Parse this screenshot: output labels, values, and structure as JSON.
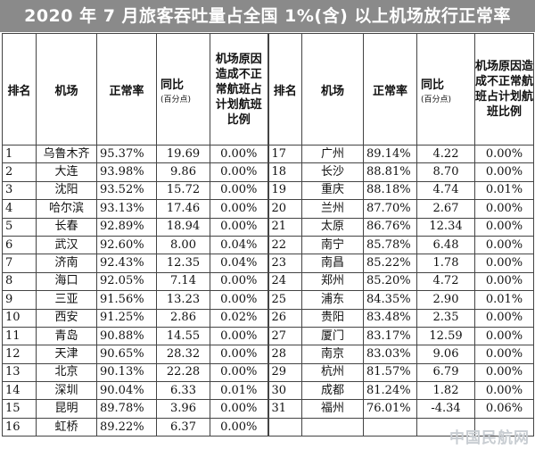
{
  "title": "2020 年 7 月旅客吞吐量占全国 1%(含) 以上机场放行正常率",
  "headers": {
    "rank": "排名",
    "airport": "机场",
    "rate": "正常率",
    "yoy": "同比",
    "yoy_unit": "(百分点)",
    "ratio": "机场原因造成不正常航班占计划航班比例"
  },
  "left_rows": [
    {
      "rank": "1",
      "airport": "乌鲁木齐",
      "rate": "95.37%",
      "yoy": "19.69",
      "ratio": "0.00%"
    },
    {
      "rank": "2",
      "airport": "大连",
      "rate": "93.98%",
      "yoy": "9.86",
      "ratio": "0.00%"
    },
    {
      "rank": "3",
      "airport": "沈阳",
      "rate": "93.52%",
      "yoy": "15.72",
      "ratio": "0.00%"
    },
    {
      "rank": "4",
      "airport": "哈尔滨",
      "rate": "93.13%",
      "yoy": "17.46",
      "ratio": "0.00%"
    },
    {
      "rank": "5",
      "airport": "长春",
      "rate": "92.89%",
      "yoy": "18.94",
      "ratio": "0.00%"
    },
    {
      "rank": "6",
      "airport": "武汉",
      "rate": "92.60%",
      "yoy": "8.00",
      "ratio": "0.04%"
    },
    {
      "rank": "7",
      "airport": "济南",
      "rate": "92.43%",
      "yoy": "12.35",
      "ratio": "0.04%"
    },
    {
      "rank": "8",
      "airport": "海口",
      "rate": "92.05%",
      "yoy": "7.14",
      "ratio": "0.00%"
    },
    {
      "rank": "9",
      "airport": "三亚",
      "rate": "91.56%",
      "yoy": "13.23",
      "ratio": "0.00%"
    },
    {
      "rank": "10",
      "airport": "西安",
      "rate": "91.25%",
      "yoy": "2.86",
      "ratio": "0.02%"
    },
    {
      "rank": "11",
      "airport": "青岛",
      "rate": "90.88%",
      "yoy": "14.55",
      "ratio": "0.00%"
    },
    {
      "rank": "12",
      "airport": "天津",
      "rate": "90.65%",
      "yoy": "28.32",
      "ratio": "0.00%"
    },
    {
      "rank": "13",
      "airport": "北京",
      "rate": "90.13%",
      "yoy": "22.28",
      "ratio": "0.00%"
    },
    {
      "rank": "14",
      "airport": "深圳",
      "rate": "90.04%",
      "yoy": "6.33",
      "ratio": "0.01%"
    },
    {
      "rank": "15",
      "airport": "昆明",
      "rate": "89.78%",
      "yoy": "3.96",
      "ratio": "0.00%"
    },
    {
      "rank": "16",
      "airport": "虹桥",
      "rate": "89.22%",
      "yoy": "6.37",
      "ratio": "0.00%"
    }
  ],
  "right_rows": [
    {
      "rank": "17",
      "airport": "广州",
      "rate": "89.14%",
      "yoy": "4.22",
      "ratio": "0.00%"
    },
    {
      "rank": "18",
      "airport": "长沙",
      "rate": "88.81%",
      "yoy": "8.70",
      "ratio": "0.00%"
    },
    {
      "rank": "19",
      "airport": "重庆",
      "rate": "88.18%",
      "yoy": "4.74",
      "ratio": "0.01%"
    },
    {
      "rank": "20",
      "airport": "兰州",
      "rate": "87.70%",
      "yoy": "2.67",
      "ratio": "0.00%"
    },
    {
      "rank": "21",
      "airport": "太原",
      "rate": "86.76%",
      "yoy": "12.34",
      "ratio": "0.00%"
    },
    {
      "rank": "22",
      "airport": "南宁",
      "rate": "85.78%",
      "yoy": "6.48",
      "ratio": "0.00%"
    },
    {
      "rank": "23",
      "airport": "南昌",
      "rate": "85.22%",
      "yoy": "1.78",
      "ratio": "0.00%"
    },
    {
      "rank": "24",
      "airport": "郑州",
      "rate": "85.20%",
      "yoy": "4.72",
      "ratio": "0.00%"
    },
    {
      "rank": "25",
      "airport": "浦东",
      "rate": "84.35%",
      "yoy": "2.90",
      "ratio": "0.01%"
    },
    {
      "rank": "26",
      "airport": "贵阳",
      "rate": "83.48%",
      "yoy": "2.35",
      "ratio": "0.00%"
    },
    {
      "rank": "27",
      "airport": "厦门",
      "rate": "83.17%",
      "yoy": "12.59",
      "ratio": "0.00%"
    },
    {
      "rank": "28",
      "airport": "南京",
      "rate": "83.03%",
      "yoy": "9.06",
      "ratio": "0.00%"
    },
    {
      "rank": "29",
      "airport": "杭州",
      "rate": "81.57%",
      "yoy": "6.79",
      "ratio": "0.00%"
    },
    {
      "rank": "30",
      "airport": "成都",
      "rate": "81.24%",
      "yoy": "1.82",
      "ratio": "0.00%"
    },
    {
      "rank": "31",
      "airport": "福州",
      "rate": "76.01%",
      "yoy": "-4.34",
      "ratio": "0.06%"
    }
  ],
  "watermark": "中国民航网",
  "colors": {
    "title_bg": "#8a8a8a",
    "title_text": "#ffffff",
    "border": "#444444"
  }
}
